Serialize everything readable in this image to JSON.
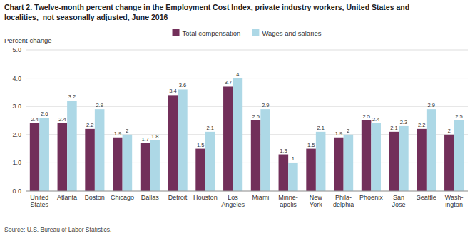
{
  "chart_data": {
    "type": "bar",
    "title": "Chart 2. Twelve-month percent change in the Employment Cost Index, private industry workers, United States and\nlocalities,  not seasonally adjusted, June 2016",
    "ylabel": "Percent change",
    "source": "Source: U.S. Bureau of Labor Statistics.",
    "categories": [
      "United\nStates",
      "Atlanta",
      "Boston",
      "Chicago",
      "Dallas",
      "Detroit",
      "Houston",
      "Los\nAngeles",
      "Miami",
      "Minne-\napolis",
      "New\nYork",
      "Phila-\ndelphia",
      "Phoenix",
      "San\nJose",
      "Seattle",
      "Wash-\nington"
    ],
    "series": [
      {
        "name": "Total compensation",
        "color": "#722F5A",
        "values": [
          2.4,
          2.4,
          2.2,
          1.9,
          1.7,
          3.4,
          1.5,
          3.7,
          2.5,
          1.3,
          1.5,
          1.9,
          2.5,
          2.1,
          2.2,
          2.0
        ]
      },
      {
        "name": "Wages and salaries",
        "color": "#ADD8E6",
        "values": [
          2.6,
          3.2,
          2.9,
          2.0,
          1.8,
          3.6,
          2.1,
          4.0,
          2.9,
          1.0,
          2.1,
          2.0,
          2.4,
          2.3,
          2.9,
          2.5
        ]
      }
    ],
    "ylim": [
      0,
      5.0
    ],
    "yticks": [
      {
        "value": 0.0,
        "label": "0.0"
      },
      {
        "value": 1.0,
        "label": "1.0"
      },
      {
        "value": 2.0,
        "label": "2.0"
      },
      {
        "value": 3.0,
        "label": "3.0"
      },
      {
        "value": 4.0,
        "label": "4.0"
      },
      {
        "value": 5.0,
        "label": "5.0"
      }
    ],
    "grid": true,
    "legend": "top",
    "data_labels": true
  }
}
